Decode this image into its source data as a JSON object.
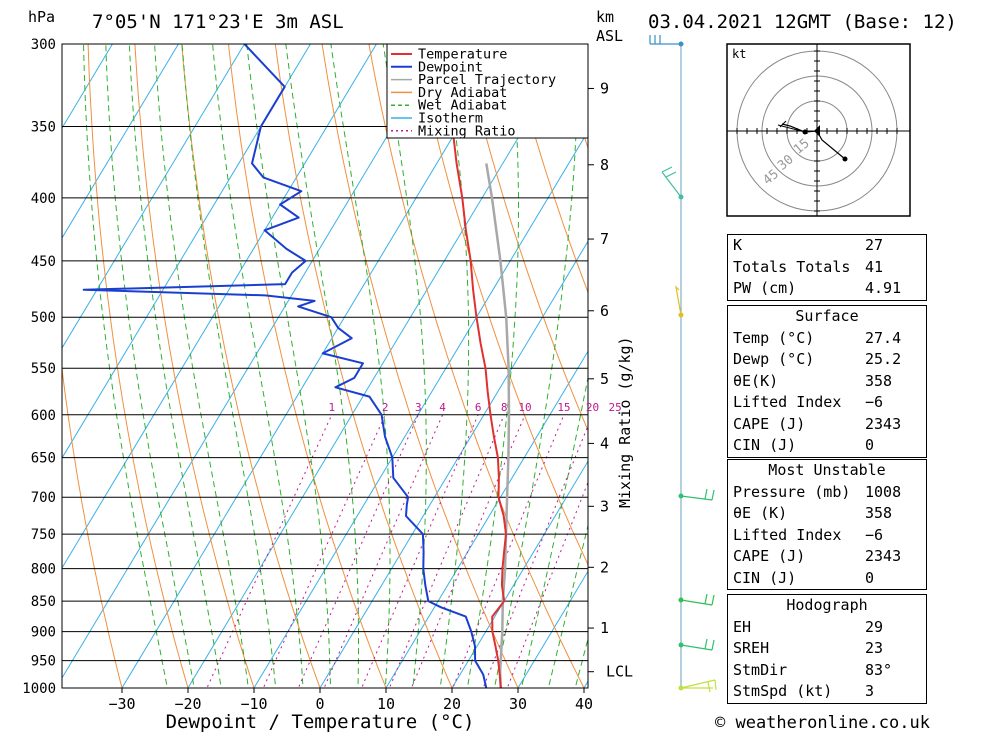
{
  "header": {
    "location": "7°05'N 171°23'E 3m ASL",
    "datetime": "03.04.2021 12GMT (Base: 12)",
    "left_unit": "hPa",
    "km_label": "km",
    "asl_label": "ASL"
  },
  "footer": {
    "copyright": "© weatheronline.co.uk"
  },
  "colors": {
    "temperature": "#e03030",
    "dewpoint": "#1a3fd0",
    "parcel": "#a8a8a8",
    "dry_adiabat": "#f09040",
    "wet_adiabat": "#30b030",
    "isotherm": "#3ab0e8",
    "mixing_ratio": "#c01890",
    "wind": "#20b070"
  },
  "chart_data": {
    "type": "line",
    "title": "Skew-T log-P sounding",
    "xlabel": "Dewpoint / Temperature (°C)",
    "ylabel": "hPa",
    "right_label": "Mixing Ratio (g/kg)",
    "xlim": [
      -40,
      40
    ],
    "ylim": [
      1000,
      300
    ],
    "x_ticks": [
      -30,
      -20,
      -10,
      0,
      10,
      20,
      30,
      40
    ],
    "x_tick_labels": [
      "−30",
      "−20",
      "−10",
      "0",
      "10",
      "20",
      "30",
      "40"
    ],
    "pressure_levels": [
      300,
      350,
      400,
      450,
      500,
      550,
      600,
      650,
      700,
      750,
      800,
      850,
      900,
      950,
      1000
    ],
    "km_ticks": [
      {
        "label": "9",
        "p": 326
      },
      {
        "label": "8",
        "p": 376
      },
      {
        "label": "7",
        "p": 432
      },
      {
        "label": "6",
        "p": 494
      },
      {
        "label": "5",
        "p": 561
      },
      {
        "label": "4",
        "p": 633
      },
      {
        "label": "3",
        "p": 712
      },
      {
        "label": "2",
        "p": 798
      },
      {
        "label": "1",
        "p": 894
      },
      {
        "label": "LCL",
        "p": 970
      }
    ],
    "mixing_ratio_labels": [
      "1",
      "2",
      "3",
      "4",
      "6",
      "8",
      "10",
      "15",
      "20",
      "25"
    ],
    "legend": [
      "Temperature",
      "Dewpoint",
      "Parcel Trajectory",
      "Dry Adiabat",
      "Wet Adiabat",
      "Isotherm",
      "Mixing Ratio"
    ],
    "temperature_profile": [
      {
        "p": 1000,
        "t": 27.4
      },
      {
        "p": 975,
        "t": 26
      },
      {
        "p": 950,
        "t": 24.5
      },
      {
        "p": 925,
        "t": 22.8
      },
      {
        "p": 900,
        "t": 21
      },
      {
        "p": 875,
        "t": 19.6
      },
      {
        "p": 850,
        "t": 20
      },
      {
        "p": 825,
        "t": 18.2
      },
      {
        "p": 800,
        "t": 16.8
      },
      {
        "p": 775,
        "t": 15.5
      },
      {
        "p": 750,
        "t": 14.2
      },
      {
        "p": 725,
        "t": 12.2
      },
      {
        "p": 700,
        "t": 9.7
      },
      {
        "p": 675,
        "t": 8
      },
      {
        "p": 650,
        "t": 6
      },
      {
        "p": 625,
        "t": 3.5
      },
      {
        "p": 600,
        "t": 1
      },
      {
        "p": 575,
        "t": -1.5
      },
      {
        "p": 550,
        "t": -4
      },
      {
        "p": 525,
        "t": -7
      },
      {
        "p": 500,
        "t": -10
      },
      {
        "p": 475,
        "t": -13
      },
      {
        "p": 450,
        "t": -16
      },
      {
        "p": 425,
        "t": -19.5
      },
      {
        "p": 400,
        "t": -23
      },
      {
        "p": 375,
        "t": -27
      },
      {
        "p": 350,
        "t": -31
      }
    ],
    "dewpoint_profile": [
      {
        "p": 1000,
        "t": 25.2
      },
      {
        "p": 975,
        "t": 23.5
      },
      {
        "p": 950,
        "t": 21
      },
      {
        "p": 925,
        "t": 19.7
      },
      {
        "p": 900,
        "t": 17.8
      },
      {
        "p": 875,
        "t": 15.6
      },
      {
        "p": 860,
        "t": 11
      },
      {
        "p": 850,
        "t": 8.5
      },
      {
        "p": 825,
        "t": 6.6
      },
      {
        "p": 800,
        "t": 4.8
      },
      {
        "p": 775,
        "t": 3.3
      },
      {
        "p": 750,
        "t": 1.6
      },
      {
        "p": 725,
        "t": -2.6
      },
      {
        "p": 710,
        "t": -3.5
      },
      {
        "p": 700,
        "t": -4
      },
      {
        "p": 675,
        "t": -8
      },
      {
        "p": 650,
        "t": -10
      },
      {
        "p": 625,
        "t": -13
      },
      {
        "p": 600,
        "t": -15.5
      },
      {
        "p": 580,
        "t": -19
      },
      {
        "p": 570,
        "t": -25
      },
      {
        "p": 560,
        "t": -23
      },
      {
        "p": 545,
        "t": -23
      },
      {
        "p": 535,
        "t": -30
      },
      {
        "p": 520,
        "t": -27
      },
      {
        "p": 510,
        "t": -30
      },
      {
        "p": 500,
        "t": -32
      },
      {
        "p": 490,
        "t": -38
      },
      {
        "p": 485,
        "t": -36
      },
      {
        "p": 480,
        "t": -44
      },
      {
        "p": 475,
        "t": -72
      },
      {
        "p": 470,
        "t": -42
      },
      {
        "p": 460,
        "t": -42
      },
      {
        "p": 450,
        "t": -41
      },
      {
        "p": 440,
        "t": -45
      },
      {
        "p": 425,
        "t": -50
      },
      {
        "p": 415,
        "t": -46
      },
      {
        "p": 405,
        "t": -50
      },
      {
        "p": 395,
        "t": -48
      },
      {
        "p": 385,
        "t": -55
      },
      {
        "p": 375,
        "t": -58
      },
      {
        "p": 350,
        "t": -60
      },
      {
        "p": 325,
        "t": -60
      },
      {
        "p": 300,
        "t": -70
      }
    ],
    "parcel_profile": [
      {
        "p": 1000,
        "t": 27.4
      },
      {
        "p": 970,
        "t": 25.8
      },
      {
        "p": 900,
        "t": 22.5
      },
      {
        "p": 850,
        "t": 19.8
      },
      {
        "p": 800,
        "t": 17.2
      },
      {
        "p": 750,
        "t": 14.2
      },
      {
        "p": 700,
        "t": 11
      },
      {
        "p": 650,
        "t": 7.6
      },
      {
        "p": 600,
        "t": 3.8
      },
      {
        "p": 550,
        "t": -0.5
      },
      {
        "p": 500,
        "t": -5.5
      },
      {
        "p": 450,
        "t": -11.5
      },
      {
        "p": 400,
        "t": -18.5
      },
      {
        "p": 375,
        "t": -22.5
      }
    ]
  },
  "hodograph": {
    "unit": "kt",
    "ring_labels": [
      "15",
      "30",
      "45"
    ]
  },
  "indices": {
    "rows": [
      {
        "label": "K",
        "value": "27"
      },
      {
        "label": "Totals Totals",
        "value": "41"
      },
      {
        "label": "PW (cm)",
        "value": "4.91"
      }
    ]
  },
  "surface": {
    "title": "Surface",
    "rows": [
      {
        "label": "Temp (°C)",
        "value": "27.4"
      },
      {
        "label": "Dewp (°C)",
        "value": "25.2"
      },
      {
        "label": "θE(K)",
        "value": "358"
      },
      {
        "label": "Lifted Index",
        "value": "−6"
      },
      {
        "label": "CAPE (J)",
        "value": "2343"
      },
      {
        "label": "CIN (J)",
        "value": "0"
      }
    ]
  },
  "most_unstable": {
    "title": "Most Unstable",
    "rows": [
      {
        "label": "Pressure (mb)",
        "value": "1008"
      },
      {
        "label": "θE (K)",
        "value": "358"
      },
      {
        "label": "Lifted Index",
        "value": "−6"
      },
      {
        "label": "CAPE (J)",
        "value": "2343"
      },
      {
        "label": "CIN (J)",
        "value": "0"
      }
    ]
  },
  "hodograph_table": {
    "title": "Hodograph",
    "rows": [
      {
        "label": "EH",
        "value": "29"
      },
      {
        "label": "SREH",
        "value": "23"
      },
      {
        "label": "StmDir",
        "value": "83°"
      },
      {
        "label": "StmSpd (kt)",
        "value": "3"
      }
    ]
  }
}
